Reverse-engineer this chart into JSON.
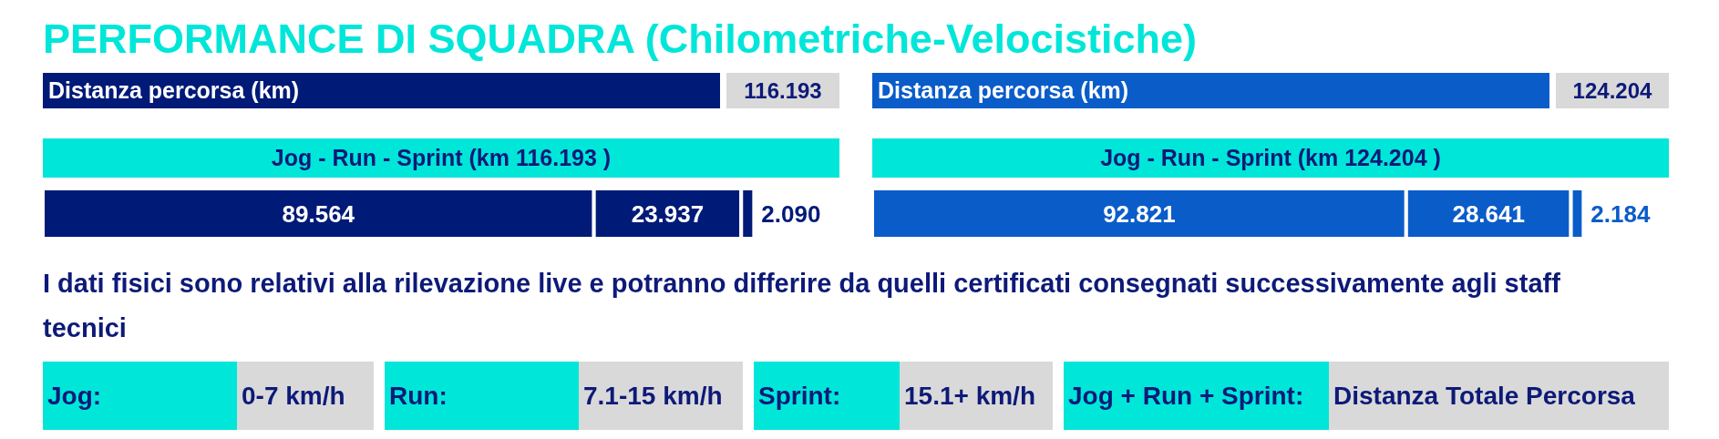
{
  "chart_data": [
    {
      "type": "bar",
      "orientation": "horizontal",
      "stacked": true,
      "title": "PERFORMANCE DI SQUADRA (Chilometriche-Velocistiche)",
      "subtitle": "Jog - Run - Sprint (km 116.193 )",
      "annotations": [
        "Distanza percorsa (km)",
        "116.193"
      ],
      "categories": [
        null
      ],
      "series": [
        {
          "color": "#001a78",
          "values": [
            89.564
          ],
          "value_labels": [
            "89.564"
          ]
        },
        {
          "color": "#001a78",
          "values": [
            23.937
          ],
          "value_labels": [
            "23.937"
          ]
        },
        {
          "color": "#001a78",
          "values": [
            2.09
          ],
          "value_labels": [
            "2.090"
          ]
        }
      ]
    },
    {
      "type": "bar",
      "orientation": "horizontal",
      "stacked": true,
      "subtitle": "Jog - Run - Sprint (km 124.204 )",
      "annotations": [
        "Distanza percorsa (km)",
        "124.204"
      ],
      "categories": [
        null
      ],
      "series": [
        {
          "color": "#0a5cc9",
          "values": [
            92.821
          ],
          "value_labels": [
            "92.821"
          ]
        },
        {
          "color": "#0a5cc9",
          "values": [
            28.641
          ],
          "value_labels": [
            "28.641"
          ]
        },
        {
          "color": "#0a5cc9",
          "values": [
            2.184
          ],
          "value_labels": [
            "2.184"
          ]
        }
      ]
    },
    {
      "type": "other",
      "annotations": [
        "I dati fisici sono relativi alla rilevazione live e potranno differire da quelli certificati consegnati successivamente agli staff tecnici",
        "Jog:",
        "0-7 km/h",
        "Run:",
        "7.1-15 km/h",
        "Sprint:",
        "15.1+ km/h",
        "Jog + Run + Sprint:",
        "Distanza Totale Percorsa"
      ]
    }
  ]
}
